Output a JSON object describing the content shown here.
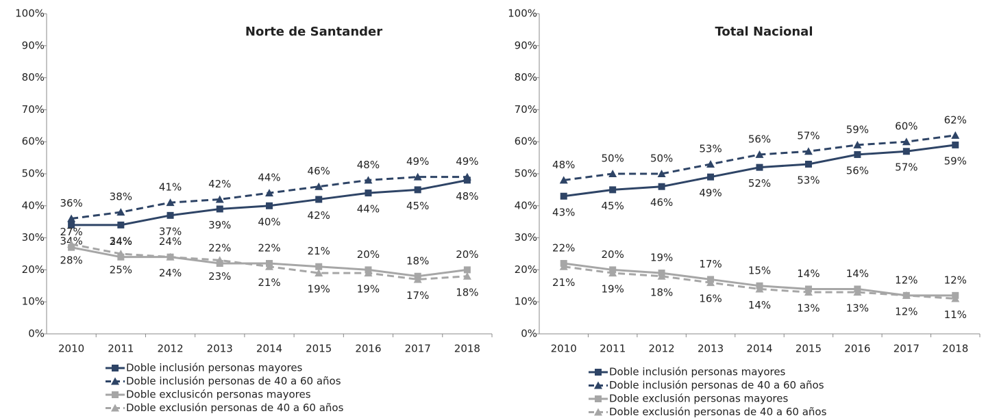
{
  "chart_data": [
    {
      "type": "line",
      "title": "Norte de Santander",
      "categories": [
        "2010",
        "2011",
        "2012",
        "2013",
        "2014",
        "2015",
        "2016",
        "2017",
        "2018"
      ],
      "ylim": [
        0,
        100
      ],
      "yticks": [
        {
          "value": 0,
          "label": "0%"
        },
        {
          "value": 10,
          "label": "10%"
        },
        {
          "value": 20,
          "label": "20%"
        },
        {
          "value": 30,
          "label": "30%"
        },
        {
          "value": 40,
          "label": "40%"
        },
        {
          "value": 50,
          "label": "50%"
        },
        {
          "value": 60,
          "label": "60%"
        },
        {
          "value": 70,
          "label": "70%"
        },
        {
          "value": 80,
          "label": "80%"
        },
        {
          "value": 90,
          "label": "90%"
        },
        {
          "value": 100,
          "label": "100%"
        }
      ],
      "series": [
        {
          "name": "Doble inclusión personas mayores",
          "color": "#2e4466",
          "line_style": "solid",
          "marker": "square",
          "values": [
            34,
            34,
            37,
            39,
            40,
            42,
            44,
            45,
            48
          ],
          "value_labels": [
            "34%",
            "34%",
            "37%",
            "39%",
            "40%",
            "42%",
            "44%",
            "45%",
            "48%"
          ]
        },
        {
          "name": "Doble inclusión personas de 40 a 60 años",
          "color": "#2e4466",
          "line_style": "dashed",
          "marker": "triangle",
          "values": [
            36,
            38,
            41,
            42,
            44,
            46,
            48,
            49,
            49
          ],
          "value_labels": [
            "36%",
            "38%",
            "41%",
            "42%",
            "44%",
            "46%",
            "48%",
            "49%",
            "49%"
          ]
        },
        {
          "name": "Doble exclusicón personas mayores",
          "color": "#a6a6a6",
          "line_style": "solid",
          "marker": "square",
          "values": [
            27,
            24,
            24,
            22,
            22,
            21,
            20,
            18,
            20
          ],
          "value_labels": [
            "27%",
            "24%",
            "24%",
            "22%",
            "22%",
            "21%",
            "20%",
            "18%",
            "20%"
          ]
        },
        {
          "name": "Doble exclusión personas de 40 a 60 años",
          "color": "#a6a6a6",
          "line_style": "dashed",
          "marker": "triangle",
          "values": [
            28,
            25,
            24,
            23,
            21,
            19,
            19,
            17,
            18
          ],
          "value_labels": [
            "28%",
            "25%",
            "24%",
            "23%",
            "21%",
            "19%",
            "19%",
            "17%",
            "18%"
          ]
        }
      ]
    },
    {
      "type": "line",
      "title": "Total Nacional",
      "categories": [
        "2010",
        "2011",
        "2012",
        "2013",
        "2014",
        "2015",
        "2016",
        "2017",
        "2018"
      ],
      "ylim": [
        0,
        100
      ],
      "yticks": [
        {
          "value": 0,
          "label": "0%"
        },
        {
          "value": 10,
          "label": "10%"
        },
        {
          "value": 20,
          "label": "20%"
        },
        {
          "value": 30,
          "label": "30%"
        },
        {
          "value": 40,
          "label": "40%"
        },
        {
          "value": 50,
          "label": "50%"
        },
        {
          "value": 60,
          "label": "60%"
        },
        {
          "value": 70,
          "label": "70%"
        },
        {
          "value": 80,
          "label": "80%"
        },
        {
          "value": 90,
          "label": "90%"
        },
        {
          "value": 100,
          "label": "100%"
        }
      ],
      "series": [
        {
          "name": "Doble inclusión personas mayores",
          "color": "#2e4466",
          "line_style": "solid",
          "marker": "square",
          "values": [
            43,
            45,
            46,
            49,
            52,
            53,
            56,
            57,
            59
          ],
          "value_labels": [
            "43%",
            "45%",
            "46%",
            "49%",
            "52%",
            "53%",
            "56%",
            "57%",
            "59%"
          ]
        },
        {
          "name": "Doble inclusión personas de 40 a 60 años",
          "color": "#2e4466",
          "line_style": "dashed",
          "marker": "triangle",
          "values": [
            48,
            50,
            50,
            53,
            56,
            57,
            59,
            60,
            62
          ],
          "value_labels": [
            "48%",
            "50%",
            "50%",
            "53%",
            "56%",
            "57%",
            "59%",
            "60%",
            "62%"
          ]
        },
        {
          "name": "Doble exclusión personas mayores",
          "color": "#a6a6a6",
          "line_style": "solid",
          "marker": "square",
          "values": [
            22,
            20,
            19,
            17,
            15,
            14,
            14,
            12,
            12
          ],
          "value_labels": [
            "22%",
            "20%",
            "19%",
            "17%",
            "15%",
            "14%",
            "14%",
            "12%",
            "12%"
          ]
        },
        {
          "name": "Doble exclusión personas de 40 a 60 años",
          "color": "#a6a6a6",
          "line_style": "dashed",
          "marker": "triangle",
          "values": [
            21,
            19,
            18,
            16,
            14,
            13,
            13,
            12,
            11
          ],
          "value_labels": [
            "21%",
            "19%",
            "18%",
            "16%",
            "14%",
            "13%",
            "13%",
            "12%",
            "11%"
          ]
        }
      ]
    }
  ]
}
